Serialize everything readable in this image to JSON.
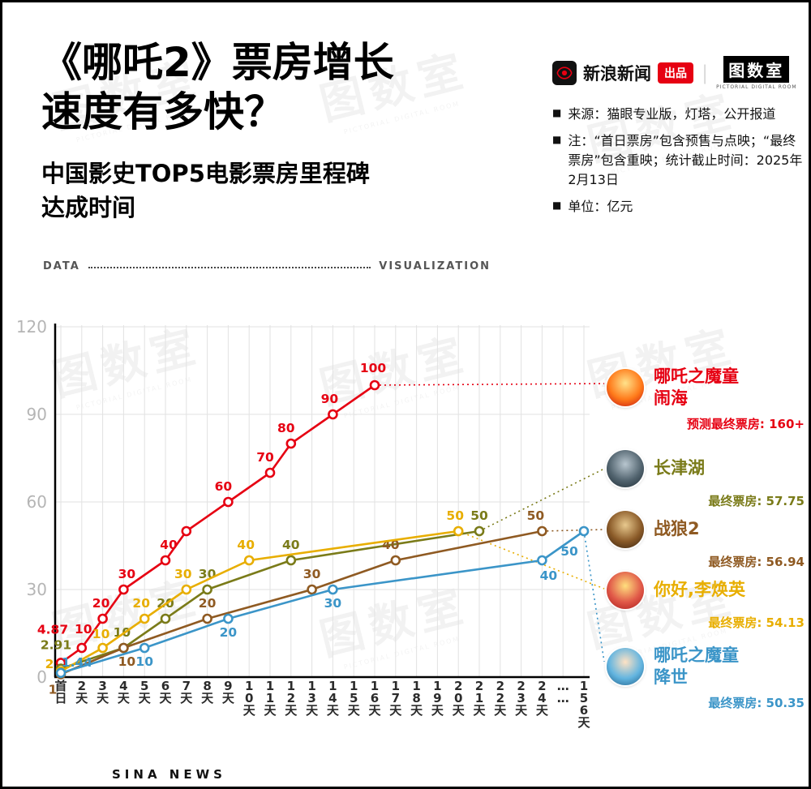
{
  "header": {
    "title_line1": "《哪吒2》票房增长",
    "title_line2": "速度有多快？",
    "subtitle_line1": "中国影史TOP5电影票房里程碑",
    "subtitle_line2": "达成时间"
  },
  "branding": {
    "brand_name": "新浪新闻",
    "badge": "出品",
    "divider": "|",
    "studio_logo": "图数室",
    "studio_sub": "PICTORIAL DIGITAL ROOM"
  },
  "notes": [
    "来源：猫眼专业版，灯塔，公开报道",
    "注：“首日票房”包含预售与点映；“最终票房”包含重映；统计截止时间：2025年2月13日",
    "单位：亿元"
  ],
  "divider": {
    "left": "DATA",
    "right": "VISUALIZATION"
  },
  "chart_data": {
    "type": "line",
    "title": "中国影史TOP5电影票房里程碑达成时间",
    "ylabel": "亿元",
    "ylim": [
      0,
      120
    ],
    "yticks": [
      0,
      30,
      60,
      90,
      120
    ],
    "grid": true,
    "x_categories": [
      "首日",
      "2天",
      "3天",
      "4天",
      "5天",
      "6天",
      "7天",
      "8天",
      "9天",
      "10天",
      "11天",
      "12天",
      "13天",
      "14天",
      "15天",
      "16天",
      "17天",
      "18天",
      "19天",
      "20天",
      "21天",
      "22天",
      "23天",
      "24天",
      "……",
      "156天"
    ],
    "series": [
      {
        "name": "哪吒之魔童闹海",
        "color": "#e60012",
        "points": [
          {
            "x": 0,
            "v": 4.87,
            "label": "4.87",
            "dx": -10,
            "dy": -36
          },
          {
            "x": 1,
            "v": 10,
            "label": "10",
            "dx": 2,
            "dy": -18
          },
          {
            "x": 2,
            "v": 20,
            "label": "20",
            "dx": -2,
            "dy": -14
          },
          {
            "x": 3,
            "v": 30,
            "label": "30",
            "dx": 4,
            "dy": -14
          },
          {
            "x": 5,
            "v": 40,
            "label": "40",
            "dx": 4,
            "dy": -14
          },
          {
            "x": 6,
            "v": 50,
            "label": ""
          },
          {
            "x": 8,
            "v": 60,
            "label": "60",
            "dx": -6,
            "dy": -14
          },
          {
            "x": 10,
            "v": 70,
            "label": "70",
            "dx": -6,
            "dy": -14
          },
          {
            "x": 11,
            "v": 80,
            "label": "80",
            "dx": -6,
            "dy": -14
          },
          {
            "x": 13,
            "v": 90,
            "label": "90",
            "dx": -4,
            "dy": -14
          },
          {
            "x": 15,
            "v": 100,
            "label": "100",
            "dx": -2,
            "dy": -16
          }
        ]
      },
      {
        "name": "长津湖",
        "color": "#7a7b19",
        "points": [
          {
            "x": 0,
            "v": 2.91,
            "label": "2.91",
            "dx": -6,
            "dy": -24
          },
          {
            "x": 3,
            "v": 10,
            "label": "10",
            "dx": -2,
            "dy": -14
          },
          {
            "x": 5,
            "v": 20,
            "label": "20",
            "dx": 0,
            "dy": -14
          },
          {
            "x": 7,
            "v": 30,
            "label": "30",
            "dx": 0,
            "dy": -14
          },
          {
            "x": 11,
            "v": 40,
            "label": "40",
            "dx": 0,
            "dy": -14
          },
          {
            "x": 20,
            "v": 50,
            "label": "50",
            "dx": 0,
            "dy": -14
          }
        ]
      },
      {
        "name": "战狼2",
        "color": "#8f5a22",
        "points": [
          {
            "x": 0,
            "v": 1,
            "label": "1",
            "dx": -10,
            "dy": 24
          },
          {
            "x": 3,
            "v": 10,
            "label": "10",
            "dx": 4,
            "dy": 22
          },
          {
            "x": 7,
            "v": 20,
            "label": "20",
            "dx": 0,
            "dy": -14
          },
          {
            "x": 12,
            "v": 30,
            "label": "30",
            "dx": 0,
            "dy": -14
          },
          {
            "x": 16,
            "v": 40,
            "label": "40",
            "dx": -6,
            "dy": -14
          },
          {
            "x": 23,
            "v": 50,
            "label": "50",
            "dx": -8,
            "dy": -14
          }
        ]
      },
      {
        "name": "你好,李焕英",
        "color": "#e8ae00",
        "points": [
          {
            "x": 0,
            "v": 2,
            "label": "2",
            "dx": -14,
            "dy": -4
          },
          {
            "x": 2,
            "v": 10,
            "label": "10",
            "dx": -2,
            "dy": -12
          },
          {
            "x": 4,
            "v": 20,
            "label": "20",
            "dx": -4,
            "dy": -14
          },
          {
            "x": 6,
            "v": 30,
            "label": "30",
            "dx": -4,
            "dy": -14
          },
          {
            "x": 9,
            "v": 40,
            "label": "40",
            "dx": -4,
            "dy": -14
          },
          {
            "x": 19,
            "v": 50,
            "label": "50",
            "dx": -4,
            "dy": -14
          }
        ]
      },
      {
        "name": "哪吒之魔童降世",
        "color": "#3b95c8",
        "points": [
          {
            "x": 0,
            "v": 1.44,
            "label": "1.44",
            "dx": 20,
            "dy": -8
          },
          {
            "x": 4,
            "v": 10,
            "label": "10",
            "dx": 0,
            "dy": 22
          },
          {
            "x": 8,
            "v": 20,
            "label": "20",
            "dx": 0,
            "dy": 22
          },
          {
            "x": 13,
            "v": 30,
            "label": "30",
            "dx": 0,
            "dy": 22
          },
          {
            "x": 23,
            "v": 40,
            "label": "40",
            "dx": 8,
            "dy": 24
          },
          {
            "x": 25,
            "v": 50,
            "label": "50",
            "dx": -18,
            "dy": 30
          }
        ]
      }
    ]
  },
  "legend": [
    {
      "name_lines": [
        "哪吒之魔童",
        "闹海"
      ],
      "sub": "预测最终票房: 160+",
      "color": "#e60012",
      "poster_colors": [
        "#ffe28a",
        "#ff7a1a",
        "#c00d12"
      ]
    },
    {
      "name_lines": [
        "长津湖"
      ],
      "sub": "最终票房: 57.75",
      "color": "#7a7b19",
      "poster_colors": [
        "#b8c6cf",
        "#52646f",
        "#1c2a33"
      ]
    },
    {
      "name_lines": [
        "战狼2"
      ],
      "sub": "最终票房: 56.94",
      "color": "#8f5a22",
      "poster_colors": [
        "#e8c98e",
        "#8a5a28",
        "#33200e"
      ]
    },
    {
      "name_lines": [
        "你好,李焕英"
      ],
      "sub": "最终票房: 54.13",
      "color": "#e8ae00",
      "poster_colors": [
        "#ffdf7e",
        "#e05848",
        "#a81a1a"
      ]
    },
    {
      "name_lines": [
        "哪吒之魔童",
        "降世"
      ],
      "sub": "最终票房: 50.35",
      "color": "#3b95c8",
      "poster_colors": [
        "#ffe2c4",
        "#63b5e0",
        "#1d5d87"
      ]
    }
  ],
  "footer": {
    "text": "SINA NEWS"
  },
  "watermark": {
    "text": "图数室",
    "sub": "PICTORIAL DIGITAL ROOM"
  }
}
